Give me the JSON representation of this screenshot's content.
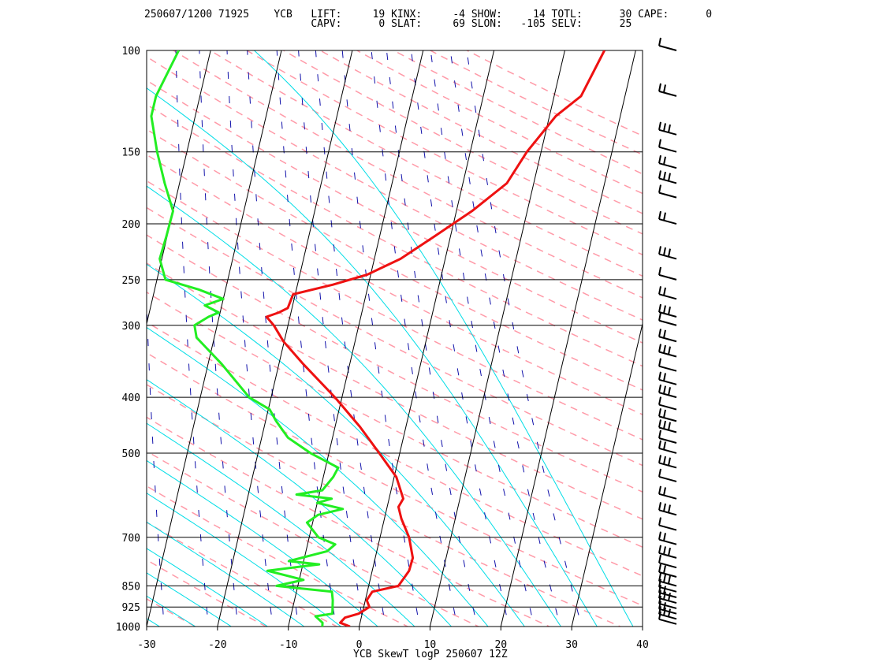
{
  "header": {
    "line1": "250607/1200 71925    YCB   LIFT:     19 KINX:     -4 SHOW:     14 TOTL:      30 CAPE:      0",
    "line2": "                           CAPV:      0 SLAT:     69 SLON:   -105 SELV:      25"
  },
  "caption": "YCB SkewT logP 250607 12Z",
  "colors": {
    "temperature": "#ee1111",
    "dewpoint": "#22ee22",
    "isotherm": "#000000",
    "dry_adiabat": "#ff9aa8",
    "moist_adiabat": "#00dde6",
    "mixing_ratio": "#1111aa",
    "wind_barb": "#000000"
  },
  "chart_data": {
    "type": "line",
    "title": "YCB SkewT logP 250607 12Z",
    "xlabel": "",
    "ylabel": "",
    "xlim": [
      -30,
      40
    ],
    "ylim": [
      1000,
      100
    ],
    "y_scale": "log",
    "x_ticks": [
      -30,
      -20,
      -10,
      0,
      10,
      20,
      30,
      40
    ],
    "y_ticks": [
      100,
      150,
      200,
      250,
      300,
      400,
      500,
      700,
      850,
      925,
      1000
    ],
    "grid": true,
    "series": [
      {
        "kind": "temperature",
        "points": [
          [
            1000,
            -1.3
          ],
          [
            985,
            -2.8
          ],
          [
            965,
            -2.3
          ],
          [
            950,
            -0.5
          ],
          [
            925,
            0.8
          ],
          [
            900,
            0.2
          ],
          [
            870,
            0.7
          ],
          [
            850,
            4.2
          ],
          [
            800,
            5.2
          ],
          [
            760,
            5.3
          ],
          [
            700,
            4.1
          ],
          [
            650,
            2.4
          ],
          [
            620,
            1.6
          ],
          [
            600,
            2.0
          ],
          [
            550,
            0.3
          ],
          [
            500,
            -2.9
          ],
          [
            450,
            -6.5
          ],
          [
            400,
            -11.0
          ],
          [
            350,
            -16.6
          ],
          [
            320,
            -20.1
          ],
          [
            300,
            -22.0
          ],
          [
            290,
            -23.3
          ],
          [
            285,
            -21.7
          ],
          [
            280,
            -20.6
          ],
          [
            265,
            -20.3
          ],
          [
            255,
            -15.0
          ],
          [
            245,
            -10.5
          ],
          [
            230,
            -6.3
          ],
          [
            210,
            -2.2
          ],
          [
            190,
            2.2
          ],
          [
            170,
            6.2
          ],
          [
            150,
            8.0
          ],
          [
            130,
            10.9
          ],
          [
            120,
            13.8
          ],
          [
            100,
            15.6
          ]
        ]
      },
      {
        "kind": "dewpoint",
        "points": [
          [
            1000,
            -5.2
          ],
          [
            985,
            -5.3
          ],
          [
            960,
            -6.5
          ],
          [
            950,
            -4.2
          ],
          [
            900,
            -4.6
          ],
          [
            870,
            -5.0
          ],
          [
            850,
            -13.0
          ],
          [
            830,
            -9.4
          ],
          [
            800,
            -14.8
          ],
          [
            780,
            -7.7
          ],
          [
            770,
            -12.1
          ],
          [
            740,
            -7.0
          ],
          [
            720,
            -6.1
          ],
          [
            700,
            -8.7
          ],
          [
            660,
            -10.8
          ],
          [
            640,
            -9.5
          ],
          [
            625,
            -6.2
          ],
          [
            610,
            -10.0
          ],
          [
            600,
            -8.1
          ],
          [
            590,
            -13.2
          ],
          [
            580,
            -9.7
          ],
          [
            550,
            -8.6
          ],
          [
            530,
            -8.2
          ],
          [
            500,
            -12.6
          ],
          [
            470,
            -16.3
          ],
          [
            440,
            -18.5
          ],
          [
            420,
            -19.8
          ],
          [
            400,
            -23.1
          ],
          [
            350,
            -28.1
          ],
          [
            315,
            -32.5
          ],
          [
            300,
            -33.2
          ],
          [
            290,
            -31.5
          ],
          [
            285,
            -30.2
          ],
          [
            277,
            -32.4
          ],
          [
            270,
            -30.0
          ],
          [
            260,
            -33.8
          ],
          [
            250,
            -38.8
          ],
          [
            230,
            -40.3
          ],
          [
            210,
            -40.1
          ],
          [
            190,
            -40.0
          ],
          [
            170,
            -42.1
          ],
          [
            150,
            -44.2
          ],
          [
            130,
            -46.2
          ],
          [
            120,
            -46.2
          ],
          [
            100,
            -44.5
          ]
        ]
      }
    ],
    "wind_barbs_pressure": [
      100,
      120,
      140,
      150,
      160,
      170,
      180,
      200,
      230,
      250,
      270,
      290,
      300,
      320,
      340,
      360,
      380,
      400,
      420,
      440,
      460,
      480,
      500,
      530,
      560,
      600,
      640,
      680,
      720,
      760,
      790,
      820,
      850,
      870,
      890,
      910,
      930,
      950,
      970,
      990
    ]
  }
}
